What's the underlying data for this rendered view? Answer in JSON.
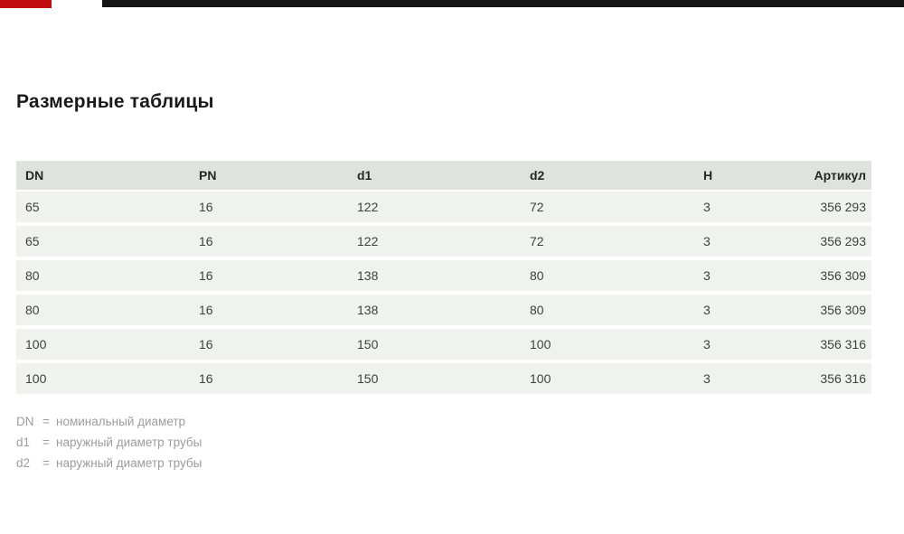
{
  "header_bar": {
    "accent_color": "#c00c0c",
    "bar_color": "#161616"
  },
  "page": {
    "title": "Размерные таблицы"
  },
  "dimension_table": {
    "columns": [
      "DN",
      "PN",
      "d1",
      "d2",
      "H",
      "Артикул"
    ],
    "rows": [
      [
        "65",
        "16",
        "122",
        "72",
        "3",
        "356 293"
      ],
      [
        "65",
        "16",
        "122",
        "72",
        "3",
        "356 293"
      ],
      [
        "80",
        "16",
        "138",
        "80",
        "3",
        "356 309"
      ],
      [
        "80",
        "16",
        "138",
        "80",
        "3",
        "356 309"
      ],
      [
        "100",
        "16",
        "150",
        "100",
        "3",
        "356 316"
      ],
      [
        "100",
        "16",
        "150",
        "100",
        "3",
        "356 316"
      ]
    ]
  },
  "footnotes": [
    {
      "term": "DN",
      "eq": "=",
      "definition": "номинальный диаметр"
    },
    {
      "term": "d1",
      "eq": "=",
      "definition": "наружный диаметр трубы"
    },
    {
      "term": "d2",
      "eq": "=",
      "definition": "наружный диаметр трубы"
    }
  ],
  "colors": {
    "table_header_bg": "#dfe3e0",
    "table_row_bg": "#f0f2f0",
    "title_color": "#1a1a1a",
    "cell_text": "#3f3f3f",
    "footnote_text": "#9c9c9c"
  }
}
